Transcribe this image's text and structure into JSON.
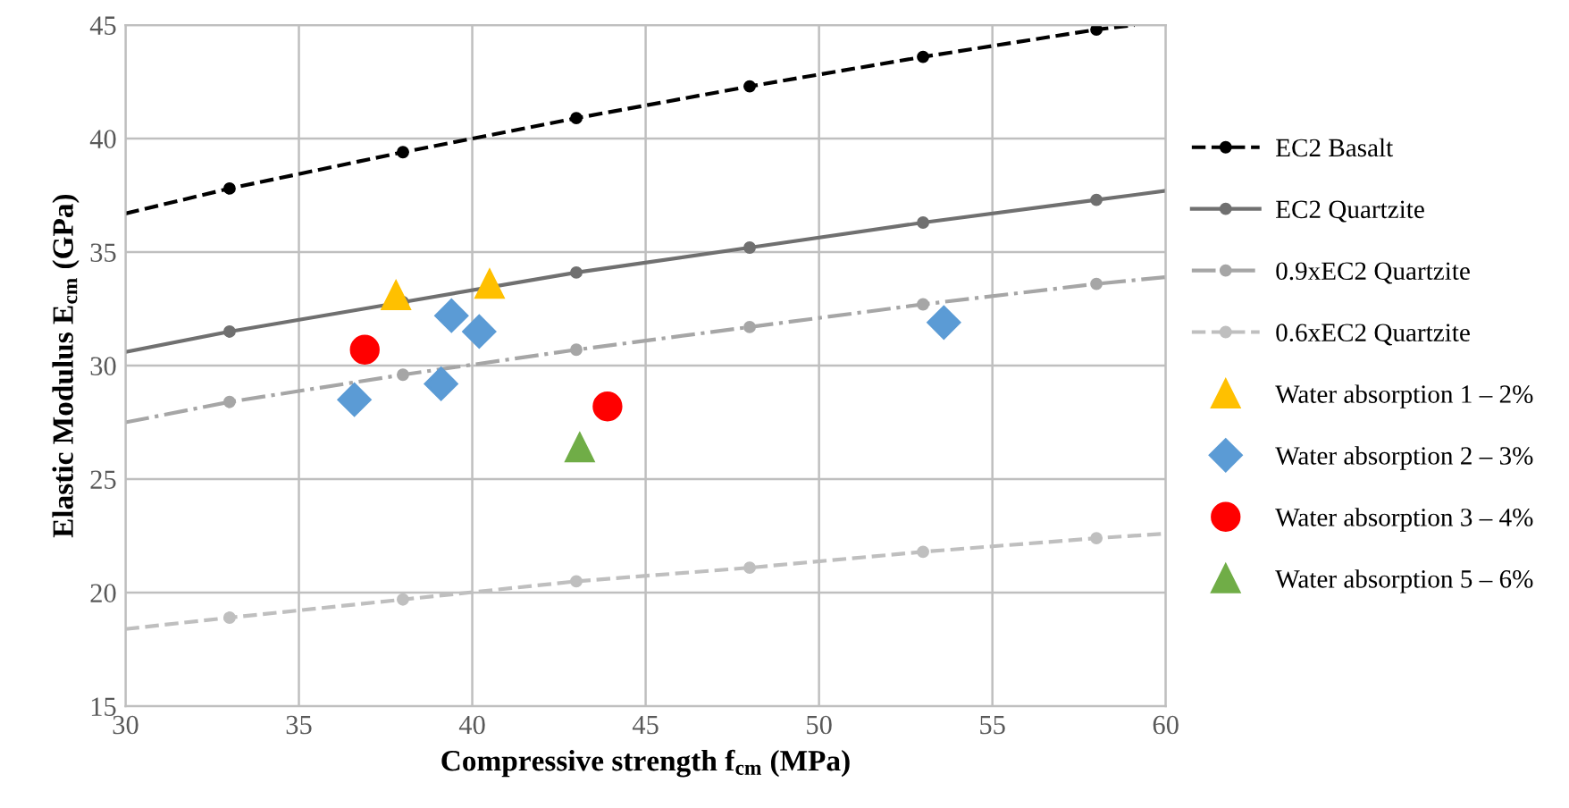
{
  "chart_data": {
    "type": "line",
    "xlabel": "Compressive strength f$_{cm}$ (MPa)",
    "ylabel": "Elastic Modulus E$_{cm}$ (GPa)",
    "xlim": [
      30,
      60
    ],
    "xticks": [
      30,
      35,
      40,
      45,
      50,
      55,
      60
    ],
    "ylim": [
      15,
      45
    ],
    "yticks": [
      15,
      20,
      25,
      30,
      35,
      40,
      45
    ],
    "grid": true,
    "legend": "right",
    "series": [
      {
        "name": "EC2 Basalt",
        "color": "#000000",
        "line_style": "dashed",
        "marker": "circle",
        "x": [
          30,
          33,
          38,
          43,
          48,
          53,
          58,
          59.1
        ],
        "values": [
          36.7,
          37.8,
          39.4,
          40.9,
          42.3,
          43.6,
          44.8,
          45.0
        ]
      },
      {
        "name": "EC2 Quartzite",
        "color": "#707070",
        "line_style": "solid",
        "marker": "circle",
        "x": [
          30,
          33,
          38,
          43,
          48,
          53,
          58,
          60
        ],
        "values": [
          30.6,
          31.5,
          32.8,
          34.1,
          35.2,
          36.3,
          37.3,
          37.7
        ]
      },
      {
        "name": "0.9xEC2 Quartzite",
        "color": "#a6a6a6",
        "line_style": "dashdot",
        "marker": "circle",
        "x": [
          30,
          33,
          38,
          43,
          48,
          53,
          58,
          60
        ],
        "values": [
          27.5,
          28.4,
          29.6,
          30.7,
          31.7,
          32.7,
          33.6,
          33.9
        ]
      },
      {
        "name": "0.6xEC2 Quartzite",
        "color": "#bfbfbf",
        "line_style": "dashed",
        "marker": "circle",
        "x": [
          30,
          33,
          38,
          43,
          48,
          53,
          58,
          60
        ],
        "values": [
          18.4,
          18.9,
          19.7,
          20.5,
          21.1,
          21.8,
          22.4,
          22.6
        ]
      },
      {
        "name": "Water absorption 1 – 2%",
        "type": "scatter",
        "color": "#ffc000",
        "marker": "triangle",
        "x": [
          37.8,
          40.5
        ],
        "values": [
          33.1,
          33.6
        ]
      },
      {
        "name": "Water absorption 2 – 3%",
        "type": "scatter",
        "color": "#5b9bd5",
        "marker": "diamond",
        "x": [
          36.6,
          39.4,
          39.1,
          40.2,
          53.6
        ],
        "values": [
          28.5,
          32.2,
          29.2,
          31.5,
          31.9
        ]
      },
      {
        "name": "Water absorption 3 – 4%",
        "type": "scatter",
        "color": "#ff0000",
        "marker": "circle",
        "x": [
          36.9,
          43.9
        ],
        "values": [
          30.7,
          28.2
        ]
      },
      {
        "name": "Water absorption 5 – 6%",
        "type": "scatter",
        "color": "#70ad47",
        "marker": "triangle",
        "x": [
          43.1
        ],
        "values": [
          26.4
        ]
      }
    ]
  }
}
